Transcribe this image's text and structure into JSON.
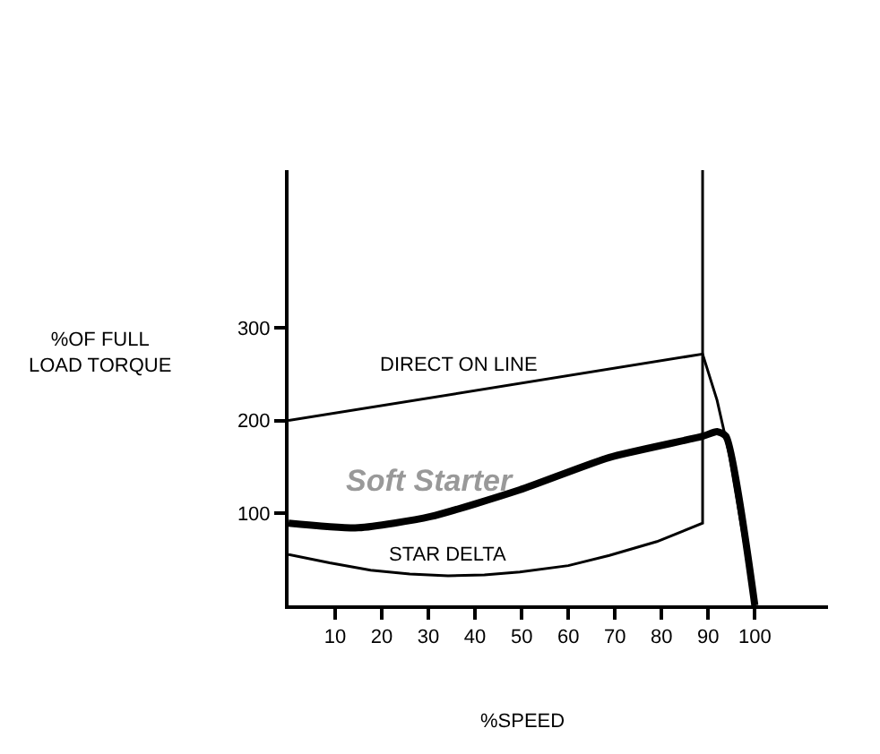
{
  "chart_data": {
    "type": "line",
    "xlabel": "%SPEED",
    "ylabel": "%OF FULL\nLOAD TORQUE",
    "xlim": [
      0,
      115.7
    ],
    "ylim": [
      0,
      471
    ],
    "xticks": [
      10,
      20,
      30,
      40,
      50,
      60,
      70,
      80,
      90,
      100
    ],
    "yticks": [
      100,
      200,
      300
    ],
    "legend": false,
    "marker": "none",
    "line_style": "solid",
    "series": [
      {
        "name": "DIRECT ON LINE",
        "color": "#000000",
        "x": [
          0,
          88.8,
          91.9,
          94.5,
          100
        ],
        "values": [
          200,
          272,
          222,
          164,
          0
        ]
      },
      {
        "name": "Soft Starter",
        "color": "#000000",
        "x": [
          0,
          15,
          30.4,
          49.6,
          68.8,
          88.8,
          91.9,
          93.8,
          100
        ],
        "values": [
          89,
          84,
          96,
          125,
          160,
          183,
          188,
          183,
          0
        ]
      },
      {
        "name": "STAR DELTA",
        "color": "#000000",
        "x": [
          0,
          8.8,
          17.6,
          26,
          34.2,
          42,
          49.6,
          60,
          68.8,
          79,
          88.8,
          88.8
        ],
        "values": [
          55,
          46,
          38,
          34,
          32,
          33,
          36,
          43,
          54,
          69,
          89,
          471
        ]
      }
    ]
  }
}
